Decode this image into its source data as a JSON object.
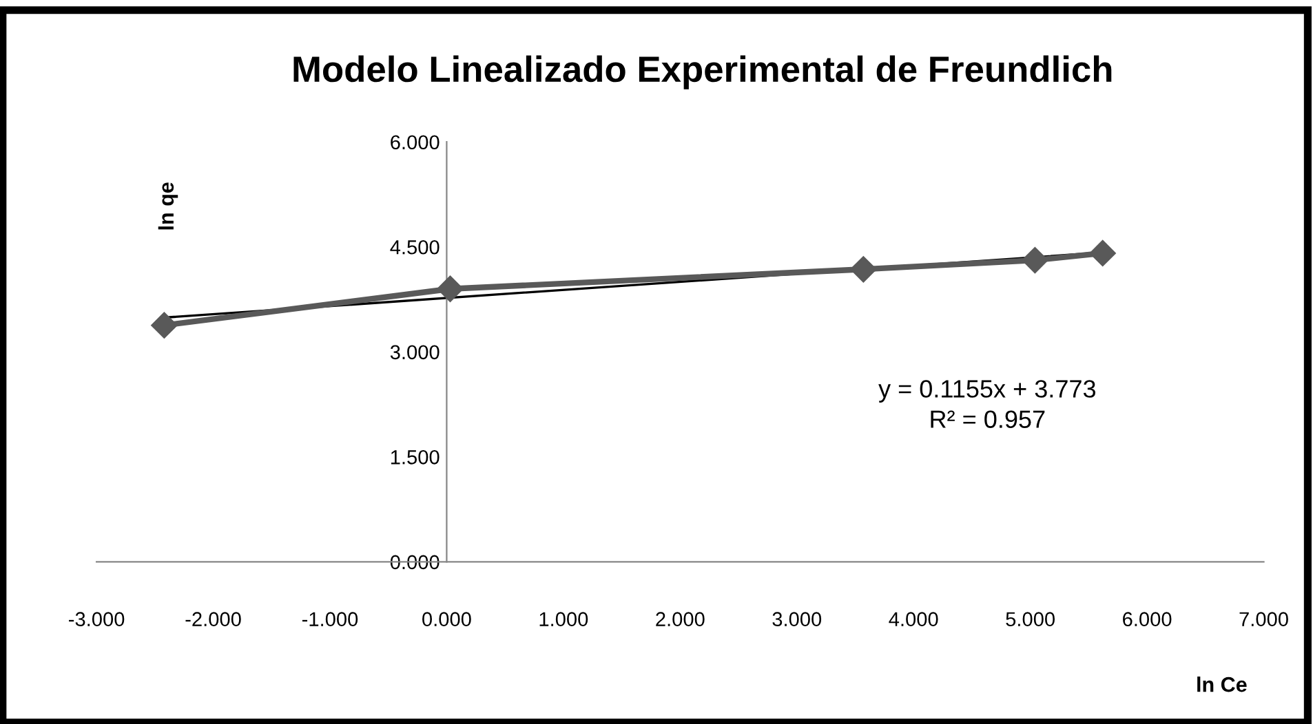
{
  "chart_data": {
    "type": "line",
    "title": "Modelo Linealizado Experimental de Freundlich",
    "xlabel": "ln Ce",
    "ylabel": "ln qe",
    "series": [
      {
        "color": "#595959",
        "x": [
          -2.42,
          0.03,
          3.57,
          5.04,
          5.62
        ],
        "values": [
          3.38,
          3.9,
          4.18,
          4.31,
          4.41
        ],
        "marker": "diamond"
      },
      {
        "type": "line",
        "color": "#000000",
        "x": [
          -2.42,
          5.62
        ],
        "values": [
          3.49,
          4.42
        ],
        "marker": "none"
      }
    ],
    "annotations": [
      "y = 0.1155x + 3.773",
      "R² = 0.957"
    ],
    "xlim": [
      -3,
      7
    ],
    "xticks": [
      {
        "value": -3,
        "label": "-3.000"
      },
      {
        "value": -2,
        "label": "-2.000"
      },
      {
        "value": -1,
        "label": "-1.000"
      },
      {
        "value": 0,
        "label": "0.000"
      },
      {
        "value": 1,
        "label": "1.000"
      },
      {
        "value": 2,
        "label": "2.000"
      },
      {
        "value": 3,
        "label": "3.000"
      },
      {
        "value": 4,
        "label": "4.000"
      },
      {
        "value": 5,
        "label": "5.000"
      },
      {
        "value": 6,
        "label": "6.000"
      },
      {
        "value": 7,
        "label": "7.000"
      }
    ],
    "ylim": [
      0,
      6
    ],
    "yticks": [
      {
        "value": 0,
        "label": "0.000"
      },
      {
        "value": 1.5,
        "label": "1.500"
      },
      {
        "value": 3,
        "label": "3.000"
      },
      {
        "value": 4.5,
        "label": "4.500"
      },
      {
        "value": 6,
        "label": "6.000"
      }
    ],
    "grid": false,
    "legend": false
  }
}
